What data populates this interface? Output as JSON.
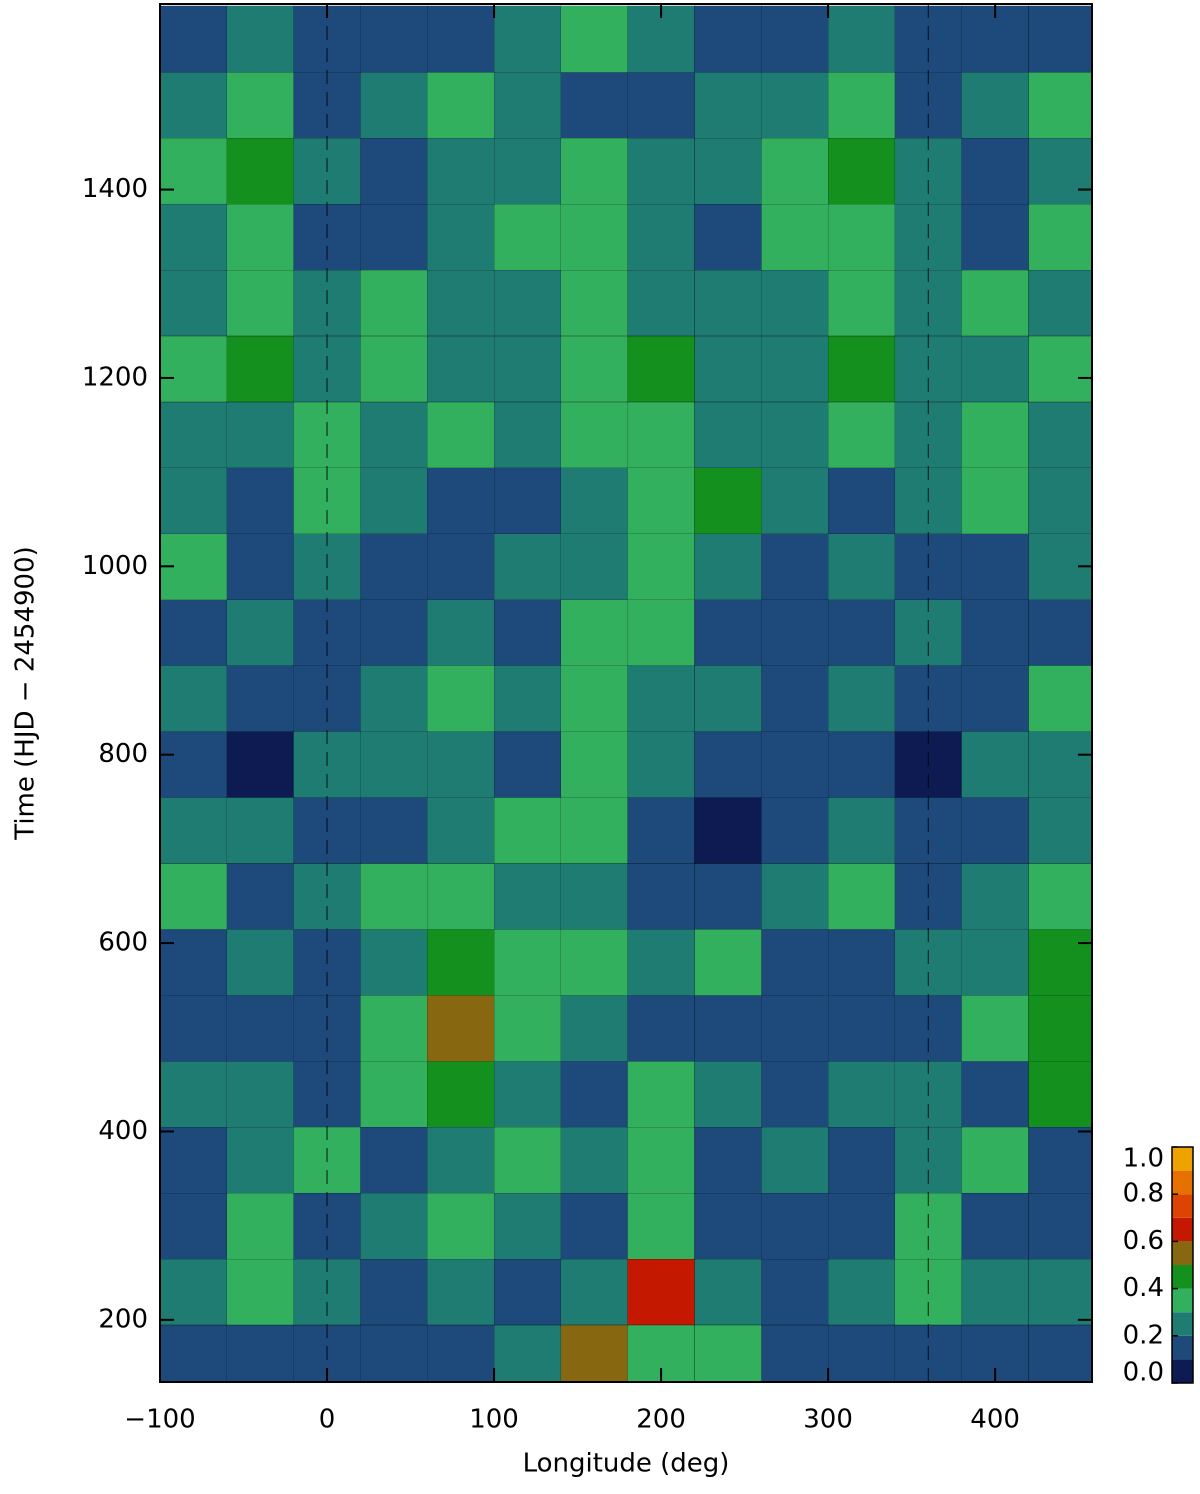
{
  "chart_data": {
    "type": "heatmap",
    "xlabel": "Longitude (deg)",
    "ylabel": "Time (HJD − 2454900)",
    "xlim": [
      -100,
      458
    ],
    "ylim": [
      134,
      1597
    ],
    "xticks": [
      {
        "value": -100,
        "label": "−100"
      },
      0,
      100,
      200,
      300,
      400
    ],
    "yticks": [
      200,
      400,
      600,
      800,
      1000,
      1200,
      1400
    ],
    "marker_lines": [
      0,
      360
    ],
    "x": [
      -80,
      -40,
      0,
      40,
      80,
      120,
      160,
      200,
      240,
      280,
      320,
      360,
      400,
      440
    ],
    "y": [
      160,
      230,
      300,
      370,
      440,
      510,
      580,
      650,
      720,
      790,
      860,
      930,
      1000,
      1070,
      1140,
      1210,
      1280,
      1350,
      1420,
      1490,
      1560
    ],
    "z": [
      [
        0.1,
        0.15,
        0.1,
        0.15,
        0.1,
        0.2,
        0.5,
        0.35,
        0.3,
        0.1,
        0.1,
        0.15,
        0.1,
        0.15
      ],
      [
        0.2,
        0.3,
        0.2,
        0.1,
        0.2,
        0.1,
        0.2,
        0.6,
        0.25,
        0.1,
        0.2,
        0.3,
        0.2,
        0.2
      ],
      [
        0.15,
        0.3,
        0.1,
        0.2,
        0.3,
        0.2,
        0.1,
        0.35,
        0.1,
        0.1,
        0.15,
        0.3,
        0.1,
        0.15
      ],
      [
        0.1,
        0.2,
        0.3,
        0.15,
        0.2,
        0.3,
        0.25,
        0.35,
        0.1,
        0.2,
        0.1,
        0.2,
        0.3,
        0.15
      ],
      [
        0.2,
        0.25,
        0.1,
        0.3,
        0.4,
        0.2,
        0.1,
        0.3,
        0.2,
        0.15,
        0.2,
        0.25,
        0.15,
        0.4
      ],
      [
        0.1,
        0.1,
        0.15,
        0.3,
        0.5,
        0.3,
        0.2,
        0.15,
        0.1,
        0.1,
        0.1,
        0.15,
        0.3,
        0.45
      ],
      [
        0.15,
        0.2,
        0.1,
        0.25,
        0.45,
        0.3,
        0.35,
        0.2,
        0.3,
        0.1,
        0.15,
        0.2,
        0.2,
        0.4
      ],
      [
        0.3,
        0.1,
        0.2,
        0.3,
        0.35,
        0.25,
        0.2,
        0.15,
        0.1,
        0.2,
        0.3,
        0.1,
        0.25,
        0.35
      ],
      [
        0.2,
        0.2,
        0.1,
        0.15,
        0.2,
        0.3,
        0.3,
        0.1,
        0.05,
        0.1,
        0.2,
        0.15,
        0.1,
        0.2
      ],
      [
        0.1,
        0.05,
        0.2,
        0.25,
        0.2,
        0.1,
        0.3,
        0.2,
        0.1,
        0.1,
        0.1,
        0.05,
        0.2,
        0.25
      ],
      [
        0.2,
        0.15,
        0.1,
        0.2,
        0.35,
        0.2,
        0.3,
        0.25,
        0.2,
        0.15,
        0.25,
        0.15,
        0.1,
        0.35
      ],
      [
        0.1,
        0.2,
        0.1,
        0.15,
        0.2,
        0.1,
        0.3,
        0.35,
        0.15,
        0.1,
        0.1,
        0.2,
        0.1,
        0.15
      ],
      [
        0.3,
        0.1,
        0.2,
        0.1,
        0.1,
        0.2,
        0.25,
        0.3,
        0.2,
        0.1,
        0.25,
        0.1,
        0.1,
        0.2
      ],
      [
        0.2,
        0.15,
        0.35,
        0.2,
        0.1,
        0.15,
        0.25,
        0.35,
        0.4,
        0.2,
        0.15,
        0.25,
        0.3,
        0.2
      ],
      [
        0.25,
        0.2,
        0.3,
        0.25,
        0.3,
        0.2,
        0.3,
        0.35,
        0.25,
        0.2,
        0.3,
        0.2,
        0.3,
        0.25
      ],
      [
        0.3,
        0.45,
        0.2,
        0.3,
        0.2,
        0.25,
        0.35,
        0.4,
        0.2,
        0.25,
        0.4,
        0.25,
        0.2,
        0.3
      ],
      [
        0.25,
        0.3,
        0.2,
        0.3,
        0.25,
        0.2,
        0.3,
        0.25,
        0.2,
        0.2,
        0.3,
        0.2,
        0.3,
        0.25
      ],
      [
        0.2,
        0.3,
        0.15,
        0.1,
        0.2,
        0.35,
        0.3,
        0.2,
        0.15,
        0.3,
        0.35,
        0.2,
        0.1,
        0.3
      ],
      [
        0.3,
        0.4,
        0.2,
        0.15,
        0.25,
        0.2,
        0.3,
        0.2,
        0.25,
        0.3,
        0.4,
        0.2,
        0.15,
        0.25
      ],
      [
        0.2,
        0.3,
        0.1,
        0.25,
        0.3,
        0.2,
        0.15,
        0.1,
        0.2,
        0.2,
        0.3,
        0.1,
        0.25,
        0.3
      ],
      [
        0.1,
        0.2,
        0.15,
        0.1,
        0.1,
        0.2,
        0.3,
        0.2,
        0.1,
        0.1,
        0.2,
        0.15,
        0.1,
        0.1
      ]
    ],
    "colorbar": {
      "levels": [
        0,
        0.1,
        0.2,
        0.3,
        0.4,
        0.5,
        0.6,
        0.7,
        0.8,
        0.9,
        1
      ],
      "colors": [
        "#0e1b52",
        "#1d4a7a",
        "#1f7c72",
        "#33b05e",
        "#14901f",
        "#876810",
        "#c41800",
        "#dc4400",
        "#e67000",
        "#eea200"
      ],
      "ticks": [
        {
          "value": 0,
          "label": "0.0"
        },
        0.2,
        0.4,
        0.6,
        0.8,
        {
          "value": 1,
          "label": "1.0"
        }
      ]
    }
  }
}
